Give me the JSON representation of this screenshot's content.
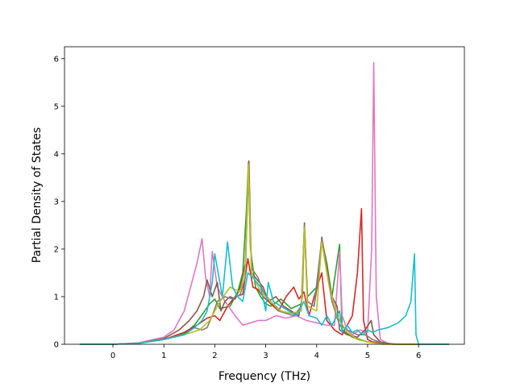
{
  "chart_data": {
    "type": "line",
    "xlabel": "Frequency (THz)",
    "ylabel": "Partial Density of States",
    "xlim": [
      -0.95,
      6.9
    ],
    "ylim": [
      0,
      6.25
    ],
    "xticks": [
      "0",
      "1",
      "2",
      "3",
      "4",
      "5",
      "6"
    ],
    "yticks": [
      "0",
      "1",
      "2",
      "3",
      "4",
      "5",
      "6"
    ],
    "grid": false,
    "legend": "none",
    "series": [
      {
        "color": "#2ca02c",
        "points": [
          [
            -0.65,
            0
          ],
          [
            0,
            0
          ],
          [
            0.5,
            0.02
          ],
          [
            1,
            0.1
          ],
          [
            1.4,
            0.22
          ],
          [
            1.6,
            0.4
          ],
          [
            1.75,
            0.62
          ],
          [
            1.9,
            0.85
          ],
          [
            2.0,
            0.95
          ],
          [
            2.1,
            0.75
          ],
          [
            2.3,
            0.8
          ],
          [
            2.45,
            1.1
          ],
          [
            2.55,
            1.5
          ],
          [
            2.62,
            2.8
          ],
          [
            2.66,
            3.82
          ],
          [
            2.7,
            2.0
          ],
          [
            2.8,
            1.2
          ],
          [
            2.9,
            1.0
          ],
          [
            3.0,
            0.85
          ],
          [
            3.1,
            0.8
          ],
          [
            3.3,
            0.95
          ],
          [
            3.5,
            0.75
          ],
          [
            3.7,
            0.85
          ],
          [
            3.76,
            2.5
          ],
          [
            3.82,
            1.0
          ],
          [
            4.0,
            1.2
          ],
          [
            4.1,
            2.2
          ],
          [
            4.2,
            1.7
          ],
          [
            4.3,
            1.0
          ],
          [
            4.45,
            2.1
          ],
          [
            4.5,
            0.3
          ],
          [
            4.7,
            0.15
          ],
          [
            5.0,
            0.05
          ],
          [
            5.3,
            0.02
          ],
          [
            5.6,
            0
          ],
          [
            6.6,
            0
          ]
        ]
      },
      {
        "color": "#d62728",
        "points": [
          [
            -0.65,
            0
          ],
          [
            0,
            0
          ],
          [
            0.5,
            0.02
          ],
          [
            1,
            0.1
          ],
          [
            1.4,
            0.25
          ],
          [
            1.65,
            0.4
          ],
          [
            1.85,
            0.55
          ],
          [
            2.0,
            0.6
          ],
          [
            2.1,
            0.5
          ],
          [
            2.25,
            0.8
          ],
          [
            2.4,
            1.0
          ],
          [
            2.55,
            1.05
          ],
          [
            2.65,
            1.8
          ],
          [
            2.75,
            1.2
          ],
          [
            2.85,
            1.15
          ],
          [
            2.95,
            1.0
          ],
          [
            3.1,
            0.85
          ],
          [
            3.25,
            0.7
          ],
          [
            3.4,
            1.0
          ],
          [
            3.55,
            1.2
          ],
          [
            3.65,
            0.95
          ],
          [
            3.75,
            1.1
          ],
          [
            3.85,
            0.6
          ],
          [
            3.95,
            1.0
          ],
          [
            4.1,
            1.5
          ],
          [
            4.2,
            0.5
          ],
          [
            4.35,
            0.3
          ],
          [
            4.5,
            0.2
          ],
          [
            4.7,
            0.6
          ],
          [
            4.8,
            1.5
          ],
          [
            4.88,
            2.85
          ],
          [
            4.92,
            0.5
          ],
          [
            5.0,
            0.1
          ],
          [
            5.1,
            0.05
          ],
          [
            5.3,
            0.02
          ],
          [
            5.6,
            0
          ],
          [
            6.6,
            0
          ]
        ]
      },
      {
        "color": "#e377c2",
        "points": [
          [
            -0.65,
            0
          ],
          [
            0,
            0
          ],
          [
            0.5,
            0.03
          ],
          [
            1.0,
            0.15
          ],
          [
            1.2,
            0.3
          ],
          [
            1.4,
            0.7
          ],
          [
            1.55,
            1.3
          ],
          [
            1.65,
            1.7
          ],
          [
            1.75,
            2.22
          ],
          [
            1.82,
            1.4
          ],
          [
            1.9,
            1.0
          ],
          [
            1.95,
            1.95
          ],
          [
            2.05,
            1.2
          ],
          [
            2.2,
            0.9
          ],
          [
            2.4,
            0.6
          ],
          [
            2.55,
            0.4
          ],
          [
            2.7,
            0.45
          ],
          [
            2.85,
            0.5
          ],
          [
            3.0,
            0.5
          ],
          [
            3.2,
            0.6
          ],
          [
            3.4,
            0.55
          ],
          [
            3.6,
            0.6
          ],
          [
            3.8,
            0.5
          ],
          [
            4.0,
            0.45
          ],
          [
            4.2,
            0.4
          ],
          [
            4.35,
            0.4
          ],
          [
            4.45,
            1.95
          ],
          [
            4.5,
            0.6
          ],
          [
            4.6,
            0.3
          ],
          [
            4.7,
            0.2
          ],
          [
            4.85,
            0.3
          ],
          [
            5.0,
            0.25
          ],
          [
            5.08,
            2.0
          ],
          [
            5.12,
            5.92
          ],
          [
            5.17,
            1.0
          ],
          [
            5.25,
            0.1
          ],
          [
            5.4,
            0.02
          ],
          [
            5.6,
            0
          ],
          [
            6.6,
            0
          ]
        ]
      },
      {
        "color": "#8c564b",
        "points": [
          [
            -0.65,
            0
          ],
          [
            0,
            0
          ],
          [
            0.5,
            0.02
          ],
          [
            1.0,
            0.12
          ],
          [
            1.3,
            0.3
          ],
          [
            1.5,
            0.5
          ],
          [
            1.65,
            0.7
          ],
          [
            1.78,
            1.0
          ],
          [
            1.85,
            1.35
          ],
          [
            1.95,
            1.0
          ],
          [
            2.05,
            1.3
          ],
          [
            2.12,
            0.7
          ],
          [
            2.2,
            0.9
          ],
          [
            2.3,
            1.0
          ],
          [
            2.4,
            0.95
          ],
          [
            2.5,
            1.2
          ],
          [
            2.6,
            1.7
          ],
          [
            2.67,
            3.85
          ],
          [
            2.72,
            1.5
          ],
          [
            2.8,
            1.4
          ],
          [
            2.95,
            1.2
          ],
          [
            3.05,
            0.9
          ],
          [
            3.2,
            1.0
          ],
          [
            3.35,
            0.8
          ],
          [
            3.5,
            0.7
          ],
          [
            3.65,
            0.6
          ],
          [
            3.72,
            1.0
          ],
          [
            3.76,
            2.55
          ],
          [
            3.82,
            0.9
          ],
          [
            3.95,
            0.8
          ],
          [
            4.05,
            1.5
          ],
          [
            4.1,
            2.25
          ],
          [
            4.2,
            1.6
          ],
          [
            4.3,
            1.0
          ],
          [
            4.4,
            0.8
          ],
          [
            4.45,
            0.3
          ],
          [
            4.6,
            0.2
          ],
          [
            4.8,
            0.15
          ],
          [
            4.95,
            0.3
          ],
          [
            5.07,
            0.5
          ],
          [
            5.12,
            0.2
          ],
          [
            5.25,
            0.05
          ],
          [
            5.5,
            0
          ],
          [
            6.6,
            0
          ]
        ]
      },
      {
        "color": "#7f7f7f",
        "points": [
          [
            -0.65,
            0
          ],
          [
            0,
            0
          ],
          [
            0.5,
            0.02
          ],
          [
            1.0,
            0.1
          ],
          [
            1.4,
            0.2
          ],
          [
            1.6,
            0.35
          ],
          [
            1.75,
            0.3
          ],
          [
            1.85,
            0.35
          ],
          [
            1.95,
            0.6
          ],
          [
            2.05,
            0.9
          ],
          [
            2.2,
            1.0
          ],
          [
            2.35,
            0.95
          ],
          [
            2.5,
            1.05
          ],
          [
            2.6,
            1.4
          ],
          [
            2.66,
            3.8
          ],
          [
            2.72,
            1.6
          ],
          [
            2.85,
            1.4
          ],
          [
            2.95,
            1.1
          ],
          [
            3.1,
            0.9
          ],
          [
            3.25,
            0.7
          ],
          [
            3.4,
            0.65
          ],
          [
            3.55,
            0.6
          ],
          [
            3.7,
            0.8
          ],
          [
            3.76,
            2.5
          ],
          [
            3.82,
            0.9
          ],
          [
            3.95,
            0.8
          ],
          [
            4.1,
            2.2
          ],
          [
            4.2,
            1.5
          ],
          [
            4.3,
            0.9
          ],
          [
            4.45,
            0.4
          ],
          [
            4.6,
            0.3
          ],
          [
            4.8,
            0.2
          ],
          [
            4.95,
            0.2
          ],
          [
            5.1,
            0.1
          ],
          [
            5.3,
            0.02
          ],
          [
            5.5,
            0
          ],
          [
            6.6,
            0
          ]
        ]
      },
      {
        "color": "#bcbd22",
        "points": [
          [
            -0.65,
            0
          ],
          [
            0,
            0
          ],
          [
            0.5,
            0.02
          ],
          [
            1.0,
            0.1
          ],
          [
            1.4,
            0.2
          ],
          [
            1.7,
            0.3
          ],
          [
            1.9,
            0.5
          ],
          [
            2.1,
            0.9
          ],
          [
            2.3,
            1.2
          ],
          [
            2.5,
            1.1
          ],
          [
            2.6,
            1.6
          ],
          [
            2.66,
            3.78
          ],
          [
            2.72,
            1.5
          ],
          [
            2.9,
            1.1
          ],
          [
            3.1,
            0.9
          ],
          [
            3.3,
            0.7
          ],
          [
            3.5,
            0.65
          ],
          [
            3.7,
            0.7
          ],
          [
            3.76,
            2.45
          ],
          [
            3.82,
            0.8
          ],
          [
            4.0,
            0.7
          ],
          [
            4.1,
            2.15
          ],
          [
            4.25,
            1.2
          ],
          [
            4.4,
            0.6
          ],
          [
            4.6,
            0.25
          ],
          [
            4.8,
            0.1
          ],
          [
            5.0,
            0.05
          ],
          [
            5.3,
            0
          ],
          [
            6.6,
            0
          ]
        ]
      },
      {
        "color": "#17becf",
        "points": [
          [
            -0.65,
            0
          ],
          [
            0,
            0
          ],
          [
            0.5,
            0.02
          ],
          [
            1.0,
            0.1
          ],
          [
            1.4,
            0.2
          ],
          [
            1.6,
            0.35
          ],
          [
            1.75,
            0.5
          ],
          [
            1.85,
            0.7
          ],
          [
            1.95,
            1.3
          ],
          [
            2.0,
            1.9
          ],
          [
            2.05,
            1.6
          ],
          [
            2.15,
            1.0
          ],
          [
            2.25,
            2.15
          ],
          [
            2.35,
            1.2
          ],
          [
            2.45,
            1.0
          ],
          [
            2.55,
            0.9
          ],
          [
            2.65,
            1.5
          ],
          [
            2.75,
            1.4
          ],
          [
            2.9,
            1.2
          ],
          [
            3.0,
            0.7
          ],
          [
            3.05,
            1.3
          ],
          [
            3.15,
            0.9
          ],
          [
            3.3,
            0.8
          ],
          [
            3.45,
            0.7
          ],
          [
            3.6,
            0.6
          ],
          [
            3.75,
            0.9
          ],
          [
            3.85,
            0.6
          ],
          [
            4.0,
            0.55
          ],
          [
            4.1,
            0.4
          ],
          [
            4.2,
            0.6
          ],
          [
            4.3,
            0.4
          ],
          [
            4.45,
            0.7
          ],
          [
            4.5,
            0.25
          ],
          [
            4.6,
            0.4
          ],
          [
            4.7,
            0.25
          ],
          [
            4.8,
            0.3
          ],
          [
            4.9,
            0.2
          ],
          [
            5.0,
            0.3
          ],
          [
            5.1,
            0.25
          ],
          [
            5.2,
            0.3
          ],
          [
            5.4,
            0.35
          ],
          [
            5.6,
            0.45
          ],
          [
            5.75,
            0.6
          ],
          [
            5.85,
            0.9
          ],
          [
            5.92,
            1.9
          ],
          [
            5.95,
            0.2
          ],
          [
            6.0,
            0
          ],
          [
            6.6,
            0
          ]
        ]
      }
    ]
  }
}
